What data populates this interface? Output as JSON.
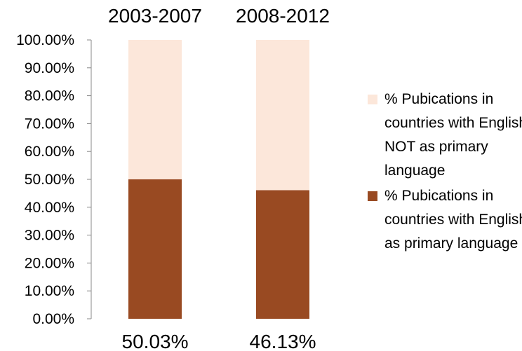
{
  "chart_data": {
    "type": "bar",
    "stacked": true,
    "categories": [
      "2003-2007",
      "2008-2012"
    ],
    "series": [
      {
        "name": "% Pubications in countries with English as primary language",
        "values": [
          50.03,
          46.13
        ],
        "color": "#994a22"
      },
      {
        "name": "% Pubications in countries with English NOT as primary language",
        "values": [
          49.97,
          53.87
        ],
        "color": "#fce7da"
      }
    ],
    "data_labels": [
      "50.03%",
      "46.13%"
    ],
    "ylim": [
      0,
      100
    ],
    "yticks": [
      "0.00%",
      "10.00%",
      "20.00%",
      "30.00%",
      "40.00%",
      "50.00%",
      "60.00%",
      "70.00%",
      "80.00%",
      "90.00%",
      "100.00%"
    ],
    "title": "",
    "xlabel": "",
    "ylabel": "",
    "grid": false,
    "legend_position": "right"
  },
  "legend": [
    {
      "label": "% Pubications in countries with English NOT as primary language",
      "color": "#fce7da"
    },
    {
      "label": "% Pubications in countries with English as primary language",
      "color": "#994a22"
    }
  ]
}
